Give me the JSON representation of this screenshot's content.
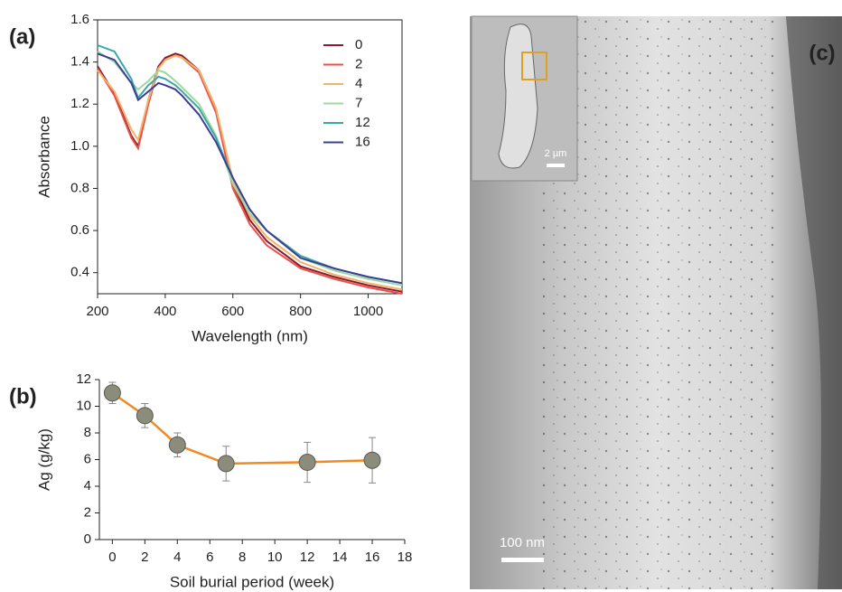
{
  "chart_data": [
    {
      "type": "line",
      "panel_label": "(a)",
      "x_label": "Wavelength (nm)",
      "y_label": "Absorbance",
      "x": [
        200,
        250,
        300,
        320,
        350,
        380,
        400,
        430,
        450,
        500,
        550,
        600,
        650,
        700,
        800,
        900,
        1000,
        1100
      ],
      "xlim": [
        200,
        1100
      ],
      "xticks": [
        200,
        400,
        600,
        800,
        1000
      ],
      "ylim": [
        0.3,
        1.6
      ],
      "yticks": [
        0.4,
        0.6,
        0.8,
        {
          "value": 1,
          "label": "1.0"
        },
        1.2,
        1.4,
        1.6
      ],
      "legend": "upper right",
      "box": true,
      "series": [
        {
          "name": "0",
          "color": "#8b1a2e",
          "values": [
            1.38,
            1.25,
            1.05,
            1.0,
            1.22,
            1.38,
            1.42,
            1.44,
            1.43,
            1.36,
            1.18,
            0.82,
            0.65,
            0.55,
            0.43,
            0.38,
            0.34,
            0.31
          ]
        },
        {
          "name": "2",
          "color": "#e8504a",
          "values": [
            1.37,
            1.24,
            1.04,
            0.99,
            1.2,
            1.37,
            1.41,
            1.43,
            1.42,
            1.35,
            1.16,
            0.8,
            0.63,
            0.53,
            0.42,
            0.37,
            0.33,
            0.3
          ]
        },
        {
          "name": "4",
          "color": "#f2b36a",
          "values": [
            1.36,
            1.26,
            1.08,
            1.03,
            1.22,
            1.37,
            1.41,
            1.43,
            1.42,
            1.36,
            1.18,
            0.84,
            0.67,
            0.57,
            0.45,
            0.39,
            0.35,
            0.32
          ]
        },
        {
          "name": "7",
          "color": "#9ed9a0",
          "values": [
            1.45,
            1.4,
            1.3,
            1.27,
            1.31,
            1.36,
            1.35,
            1.31,
            1.28,
            1.2,
            1.05,
            0.82,
            0.68,
            0.6,
            0.47,
            0.41,
            0.37,
            0.34
          ]
        },
        {
          "name": "12",
          "color": "#3aa8a8",
          "values": [
            1.48,
            1.45,
            1.32,
            1.23,
            1.29,
            1.33,
            1.32,
            1.29,
            1.26,
            1.18,
            1.04,
            0.85,
            0.7,
            0.6,
            0.48,
            0.42,
            0.38,
            0.35
          ]
        },
        {
          "name": "16",
          "color": "#3d3f95",
          "values": [
            1.44,
            1.41,
            1.3,
            1.22,
            1.26,
            1.3,
            1.29,
            1.27,
            1.24,
            1.15,
            1.02,
            0.85,
            0.7,
            0.6,
            0.47,
            0.42,
            0.38,
            0.35
          ]
        }
      ]
    },
    {
      "type": "line",
      "panel_label": "(b)",
      "x_label": "Soil burial period (week)",
      "y_label": "Ag (g/kg)",
      "x": [
        0,
        2,
        4,
        7,
        12,
        16
      ],
      "values": [
        11.0,
        9.3,
        7.1,
        5.7,
        5.8,
        5.95
      ],
      "errors": [
        0.8,
        0.9,
        0.9,
        1.3,
        1.5,
        1.7
      ],
      "color": "#f08a24",
      "marker_color": "#8c8c7c",
      "xlim": [
        -0.8,
        18
      ],
      "xticks": [
        0,
        2,
        4,
        6,
        8,
        10,
        12,
        14,
        16,
        18
      ],
      "ylim": [
        0,
        12
      ],
      "yticks": [
        0,
        2,
        4,
        6,
        8,
        10,
        12
      ],
      "box": false
    }
  ],
  "image": {
    "panel_label": "(c)",
    "inset_scale_label": "2 µm",
    "scale_label": "100 nm"
  }
}
